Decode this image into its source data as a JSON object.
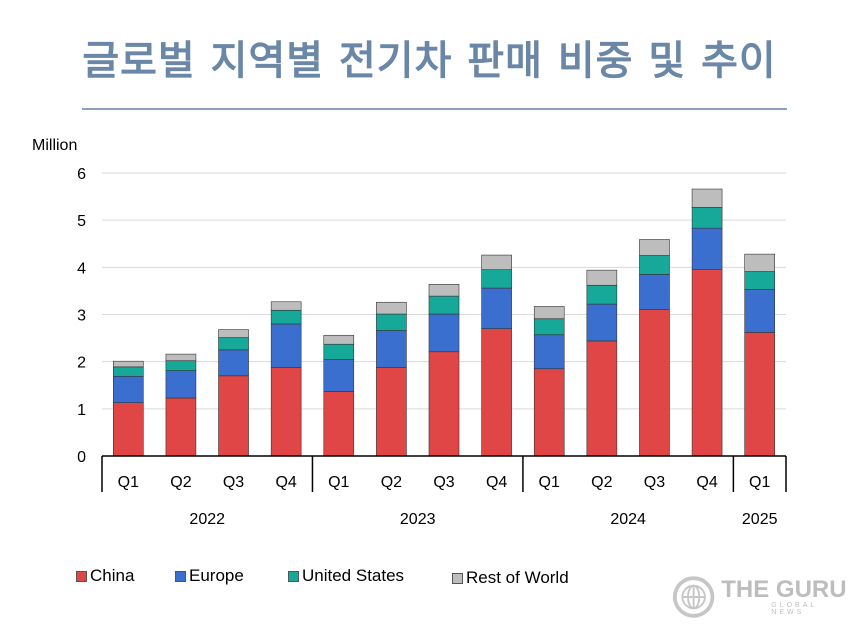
{
  "title": "글로벌 지역별 전기차 판매 비중 및 추이",
  "watermark": {
    "main": "THE GURU",
    "sub": "GLOBAL NEWS"
  },
  "colors": {
    "china": "#e04646",
    "europe": "#3a6fd0",
    "united_states": "#16a898",
    "rest_of_world": "#bdbdbd",
    "title": "#6a87a8"
  },
  "chart_data": {
    "type": "bar",
    "stacked": true,
    "unit_label": "Million",
    "ylim": [
      0,
      6
    ],
    "y_ticks": [
      0,
      1,
      2,
      3,
      4,
      5,
      6
    ],
    "grid": true,
    "legend_position": "bottom-left",
    "categories": [
      "Q1",
      "Q2",
      "Q3",
      "Q4",
      "Q1",
      "Q2",
      "Q3",
      "Q4",
      "Q1",
      "Q2",
      "Q3",
      "Q4",
      "Q1"
    ],
    "groups": [
      {
        "label": "2022",
        "count": 4
      },
      {
        "label": "2023",
        "count": 4
      },
      {
        "label": "2024",
        "count": 4
      },
      {
        "label": "2025",
        "count": 1
      }
    ],
    "series": [
      {
        "name": "China",
        "color_key": "china",
        "values": [
          1.13,
          1.23,
          1.7,
          1.88,
          1.37,
          1.88,
          2.21,
          2.7,
          1.85,
          2.44,
          3.11,
          3.95,
          2.62
        ]
      },
      {
        "name": "Europe",
        "color_key": "europe",
        "values": [
          0.56,
          0.58,
          0.55,
          0.92,
          0.68,
          0.78,
          0.8,
          0.86,
          0.72,
          0.78,
          0.74,
          0.88,
          0.91
        ]
      },
      {
        "name": "United States",
        "color_key": "united_states",
        "values": [
          0.2,
          0.21,
          0.26,
          0.29,
          0.32,
          0.35,
          0.38,
          0.39,
          0.34,
          0.4,
          0.4,
          0.44,
          0.38
        ]
      },
      {
        "name": "Rest of World",
        "color_key": "rest_of_world",
        "values": [
          0.12,
          0.14,
          0.17,
          0.18,
          0.19,
          0.25,
          0.25,
          0.31,
          0.26,
          0.32,
          0.34,
          0.39,
          0.37
        ]
      }
    ]
  }
}
